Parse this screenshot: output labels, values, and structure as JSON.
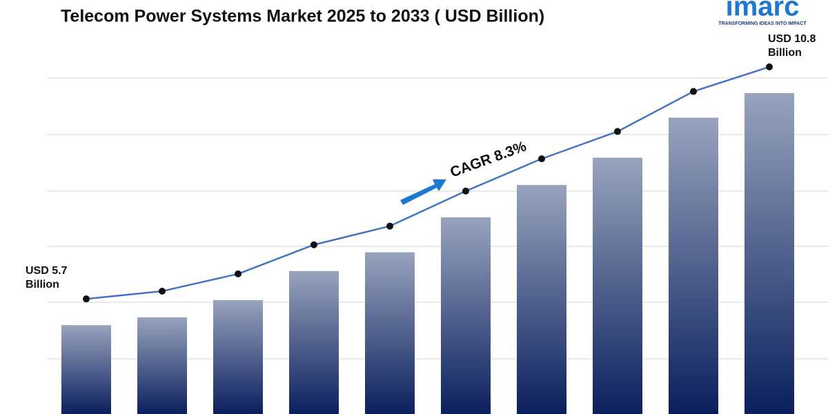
{
  "chart_data": {
    "type": "bar",
    "title": "Telecom Power Systems Market 2025 to 2033 ( USD Billion)",
    "logo": "imarc",
    "tagline": "TRANSFORMING IDEAS INTO IMPACT",
    "categories": [
      null,
      null,
      null,
      null,
      null,
      null,
      null,
      null,
      null,
      null
    ],
    "values": [
      5.7,
      5.87,
      6.25,
      6.89,
      7.3,
      8.07,
      8.78,
      9.38,
      10.26,
      10.8
    ],
    "value_labels": [
      "USD 5.7 Billion",
      null,
      null,
      null,
      null,
      null,
      null,
      null,
      null,
      "USD 10.8 Billion"
    ],
    "annotation": "CAGR  8.3%",
    "color": "#0b1f5e",
    "line_color": "#4472c4",
    "ylim": [
      3.17,
      11.36
    ],
    "grid": true
  }
}
